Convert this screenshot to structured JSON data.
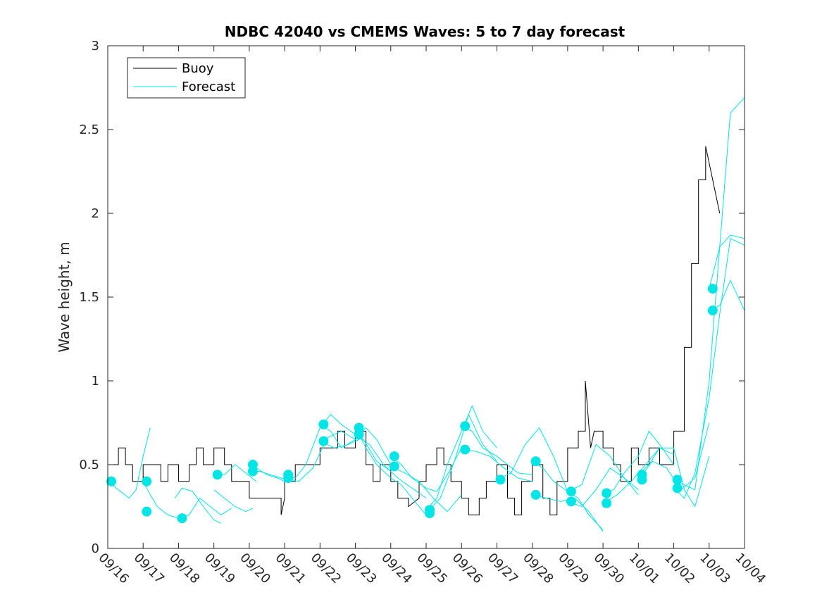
{
  "chart_data": {
    "type": "line",
    "title": "NDBC 42040 vs CMEMS Waves: 5 to 7 day forecast",
    "xlabel": "",
    "ylabel": "Wave height, m",
    "xlim": [
      0,
      18
    ],
    "ylim": [
      0,
      3
    ],
    "x_tick_labels": [
      "09/16",
      "09/17",
      "09/18",
      "09/19",
      "09/20",
      "09/21",
      "09/22",
      "09/23",
      "09/24",
      "09/25",
      "09/26",
      "09/27",
      "09/28",
      "09/29",
      "09/30",
      "10/01",
      "10/02",
      "10/03",
      "10/04"
    ],
    "y_ticks": [
      0,
      0.5,
      1,
      1.5,
      2,
      2.5,
      3
    ],
    "y_tick_labels": [
      "0",
      "0.5",
      "1",
      "1.5",
      "2",
      "2.5",
      "3"
    ],
    "grid": false,
    "legend": {
      "position": "top-left",
      "entries": [
        {
          "label": "Buoy",
          "color": "#000000"
        },
        {
          "label": "Forecast",
          "color": "#00e5e5"
        }
      ]
    },
    "colors": {
      "buoy": "#000000",
      "forecast": "#00e5e5",
      "marker": "#00e5e5"
    },
    "series": [
      {
        "name": "Buoy",
        "x": [
          0.0,
          0.3,
          0.3,
          0.5,
          0.5,
          0.7,
          0.7,
          1.0,
          1.0,
          1.5,
          1.5,
          1.7,
          1.7,
          2.0,
          2.0,
          2.3,
          2.3,
          2.5,
          2.5,
          2.7,
          2.7,
          3.0,
          3.0,
          3.3,
          3.3,
          3.5,
          3.5,
          4.0,
          4.0,
          4.5,
          4.5,
          4.9,
          4.9,
          5.0,
          5.0,
          5.3,
          5.3,
          6.0,
          6.0,
          6.5,
          6.5,
          6.7,
          6.7,
          7.0,
          7.0,
          7.3,
          7.3,
          7.5,
          7.5,
          7.7,
          7.7,
          8.0,
          8.0,
          8.2,
          8.2,
          8.5,
          8.5,
          8.8,
          8.8,
          9.0,
          9.0,
          9.3,
          9.3,
          9.5,
          9.5,
          9.7,
          9.7,
          10.0,
          10.0,
          10.2,
          10.2,
          10.5,
          10.5,
          10.7,
          10.7,
          11.0,
          11.0,
          11.3,
          11.3,
          11.5,
          11.5,
          11.7,
          11.7,
          12.0,
          12.0,
          12.3,
          12.3,
          12.5,
          12.5,
          12.7,
          12.7,
          13.0,
          13.0,
          13.3,
          13.3,
          13.5,
          13.5,
          13.65,
          13.75,
          13.85,
          13.85,
          14.0,
          14.0,
          14.3,
          14.3,
          14.5,
          14.5,
          14.8,
          14.8,
          15.0,
          15.0,
          15.3,
          15.3,
          15.6,
          15.6,
          16.0,
          16.0,
          16.3,
          16.3,
          16.5,
          16.5,
          16.7,
          16.7,
          16.9,
          16.9,
          17.1,
          17.1,
          17.3
        ],
        "y": [
          0.5,
          0.5,
          0.6,
          0.6,
          0.5,
          0.5,
          0.4,
          0.4,
          0.5,
          0.5,
          0.4,
          0.4,
          0.5,
          0.5,
          0.4,
          0.4,
          0.5,
          0.5,
          0.6,
          0.6,
          0.5,
          0.5,
          0.6,
          0.6,
          0.5,
          0.5,
          0.4,
          0.4,
          0.3,
          0.3,
          0.3,
          0.3,
          0.2,
          0.3,
          0.4,
          0.4,
          0.5,
          0.5,
          0.6,
          0.6,
          0.7,
          0.7,
          0.6,
          0.6,
          0.7,
          0.7,
          0.5,
          0.5,
          0.4,
          0.4,
          0.5,
          0.5,
          0.4,
          0.4,
          0.3,
          0.3,
          0.25,
          0.3,
          0.4,
          0.4,
          0.5,
          0.5,
          0.6,
          0.6,
          0.5,
          0.5,
          0.4,
          0.4,
          0.3,
          0.3,
          0.2,
          0.2,
          0.3,
          0.3,
          0.4,
          0.4,
          0.5,
          0.5,
          0.3,
          0.3,
          0.2,
          0.2,
          0.4,
          0.4,
          0.5,
          0.5,
          0.3,
          0.3,
          0.2,
          0.2,
          0.4,
          0.4,
          0.6,
          0.6,
          0.7,
          0.7,
          1.0,
          0.6,
          0.7,
          0.7,
          0.7,
          0.7,
          0.6,
          0.6,
          0.5,
          0.5,
          0.4,
          0.4,
          0.6,
          0.6,
          0.5,
          0.5,
          0.6,
          0.6,
          0.5,
          0.5,
          0.7,
          0.7,
          1.2,
          1.2,
          1.7,
          1.7,
          2.2,
          2.2,
          2.4,
          2.2,
          2.2,
          2.0
        ]
      },
      {
        "name": "Forecast",
        "segments": [
          {
            "x": [
              0.0,
              0.3,
              0.6,
              0.8,
              1.0,
              1.2
            ],
            "y": [
              0.4,
              0.35,
              0.3,
              0.35,
              0.55,
              0.72
            ]
          },
          {
            "x": [
              1.0,
              1.2,
              1.4,
              1.7,
              2.0
            ],
            "y": [
              0.4,
              0.32,
              0.25,
              0.2,
              0.18
            ]
          },
          {
            "x": [
              1.9,
              2.1,
              2.4,
              2.7,
              3.0,
              3.2
            ],
            "y": [
              0.3,
              0.36,
              0.34,
              0.25,
              0.17,
              0.15
            ]
          },
          {
            "x": [
              2.0,
              2.3,
              2.6,
              2.9,
              3.2,
              3.5
            ],
            "y": [
              0.18,
              0.2,
              0.3,
              0.25,
              0.2,
              0.24
            ]
          },
          {
            "x": [
              3.0,
              3.3,
              3.6,
              3.9,
              4.2
            ],
            "y": [
              0.44,
              0.44,
              0.5,
              0.45,
              0.4
            ]
          },
          {
            "x": [
              3.0,
              3.3,
              3.6,
              3.9,
              4.1
            ],
            "y": [
              0.35,
              0.3,
              0.25,
              0.22,
              0.24
            ]
          },
          {
            "x": [
              4.0,
              4.2,
              4.5,
              4.8,
              5.0
            ],
            "y": [
              0.5,
              0.48,
              0.44,
              0.42,
              0.4
            ]
          },
          {
            "x": [
              4.0,
              4.3,
              4.6,
              4.9,
              5.1
            ],
            "y": [
              0.46,
              0.46,
              0.44,
              0.42,
              0.41
            ]
          },
          {
            "x": [
              5.0,
              5.3,
              5.6,
              6.0,
              6.3,
              6.6,
              7.0
            ],
            "y": [
              0.44,
              0.42,
              0.5,
              0.72,
              0.8,
              0.74,
              0.68
            ]
          },
          {
            "x": [
              5.0,
              5.4,
              5.8,
              6.2,
              6.6,
              7.0
            ],
            "y": [
              0.42,
              0.4,
              0.48,
              0.66,
              0.7,
              0.65
            ]
          },
          {
            "x": [
              6.0,
              6.3,
              6.6,
              7.0,
              7.3,
              7.6,
              8.0
            ],
            "y": [
              0.74,
              0.7,
              0.6,
              0.65,
              0.72,
              0.65,
              0.5
            ]
          },
          {
            "x": [
              6.0,
              6.4,
              6.8,
              7.2,
              7.6,
              8.0
            ],
            "y": [
              0.64,
              0.6,
              0.62,
              0.66,
              0.52,
              0.46
            ]
          },
          {
            "x": [
              7.0,
              7.3,
              7.6,
              8.0,
              8.3,
              8.6,
              9.0
            ],
            "y": [
              0.72,
              0.6,
              0.5,
              0.42,
              0.38,
              0.3,
              0.2
            ]
          },
          {
            "x": [
              7.0,
              7.4,
              7.8,
              8.2,
              8.6,
              9.0
            ],
            "y": [
              0.68,
              0.62,
              0.5,
              0.42,
              0.36,
              0.3
            ]
          },
          {
            "x": [
              8.0,
              8.3,
              8.6,
              9.0,
              9.3,
              9.6,
              10.0
            ],
            "y": [
              0.55,
              0.5,
              0.42,
              0.36,
              0.34,
              0.44,
              0.6
            ]
          },
          {
            "x": [
              8.0,
              8.4,
              8.8,
              9.2,
              9.6,
              10.0
            ],
            "y": [
              0.49,
              0.45,
              0.4,
              0.3,
              0.22,
              0.32
            ]
          },
          {
            "x": [
              9.0,
              9.3,
              9.6,
              10.0,
              10.3,
              10.6,
              11.0
            ],
            "y": [
              0.23,
              0.3,
              0.5,
              0.7,
              0.85,
              0.7,
              0.6
            ]
          },
          {
            "x": [
              9.0,
              9.4,
              9.8,
              10.2,
              10.6,
              11.0
            ],
            "y": [
              0.21,
              0.3,
              0.52,
              0.8,
              0.62,
              0.52
            ]
          },
          {
            "x": [
              10.0,
              10.3,
              10.6,
              11.0,
              11.3,
              11.6,
              12.0
            ],
            "y": [
              0.73,
              0.7,
              0.6,
              0.55,
              0.5,
              0.45,
              0.44
            ]
          },
          {
            "x": [
              10.0,
              10.4,
              10.8,
              11.2,
              11.6,
              12.0
            ],
            "y": [
              0.59,
              0.58,
              0.55,
              0.48,
              0.42,
              0.4
            ]
          },
          {
            "x": [
              11.0,
              11.4,
              11.8,
              12.2,
              12.6,
              13.0
            ],
            "y": [
              0.41,
              0.45,
              0.62,
              0.72,
              0.55,
              0.34
            ]
          },
          {
            "x": [
              12.0,
              12.3,
              12.6,
              13.0,
              13.3,
              13.6,
              14.0
            ],
            "y": [
              0.52,
              0.48,
              0.4,
              0.34,
              0.3,
              0.2,
              0.11
            ]
          },
          {
            "x": [
              12.0,
              12.4,
              12.8,
              13.2,
              13.6,
              14.0
            ],
            "y": [
              0.32,
              0.3,
              0.28,
              0.3,
              0.22,
              0.1
            ]
          },
          {
            "x": [
              13.0,
              13.4,
              13.8,
              14.2,
              14.6,
              15.0
            ],
            "y": [
              0.34,
              0.38,
              0.62,
              0.55,
              0.42,
              0.35
            ]
          },
          {
            "x": [
              13.0,
              13.4,
              13.8,
              14.2,
              14.6,
              15.0
            ],
            "y": [
              0.28,
              0.25,
              0.35,
              0.48,
              0.42,
              0.32
            ]
          },
          {
            "x": [
              14.0,
              14.3,
              14.6,
              15.0,
              15.3,
              15.6,
              16.0
            ],
            "y": [
              0.33,
              0.35,
              0.45,
              0.55,
              0.7,
              0.62,
              0.5
            ]
          },
          {
            "x": [
              14.0,
              14.4,
              14.8,
              15.2,
              15.6,
              16.0
            ],
            "y": [
              0.27,
              0.32,
              0.4,
              0.5,
              0.6,
              0.56
            ]
          },
          {
            "x": [
              15.0,
              15.3,
              15.6,
              16.0,
              16.3,
              16.6,
              17.0
            ],
            "y": [
              0.44,
              0.5,
              0.6,
              0.6,
              0.35,
              0.25,
              0.55
            ]
          },
          {
            "x": [
              15.0,
              15.4,
              15.8,
              16.2,
              16.6,
              17.0
            ],
            "y": [
              0.41,
              0.52,
              0.48,
              0.35,
              0.42,
              0.75
            ]
          },
          {
            "x": [
              16.0,
              16.3,
              16.6,
              17.0,
              17.3,
              17.6,
              18.0
            ],
            "y": [
              0.41,
              0.38,
              0.35,
              1.0,
              1.8,
              2.6,
              2.69
            ]
          },
          {
            "x": [
              16.0,
              16.3,
              16.6,
              17.0,
              17.3,
              17.6,
              18.0
            ],
            "y": [
              0.36,
              0.3,
              0.45,
              0.9,
              1.4,
              1.85,
              1.81
            ]
          },
          {
            "x": [
              17.0,
              17.3,
              17.6,
              18.0
            ],
            "y": [
              1.55,
              1.8,
              1.87,
              1.85
            ]
          },
          {
            "x": [
              17.0,
              17.3,
              17.6,
              18.0
            ],
            "y": [
              1.42,
              1.45,
              1.6,
              1.42
            ]
          }
        ],
        "markers": {
          "x": [
            0.1,
            1.1,
            1.1,
            2.1,
            3.1,
            4.1,
            4.1,
            5.1,
            5.1,
            6.1,
            6.1,
            7.1,
            7.1,
            8.1,
            8.1,
            9.1,
            9.1,
            10.1,
            10.1,
            11.1,
            12.1,
            12.1,
            13.1,
            13.1,
            14.1,
            14.1,
            15.1,
            15.1,
            16.1,
            16.1,
            17.1,
            17.1
          ],
          "y": [
            0.4,
            0.4,
            0.22,
            0.18,
            0.44,
            0.5,
            0.46,
            0.44,
            0.42,
            0.74,
            0.64,
            0.72,
            0.68,
            0.55,
            0.49,
            0.23,
            0.21,
            0.73,
            0.59,
            0.41,
            0.52,
            0.32,
            0.34,
            0.28,
            0.33,
            0.27,
            0.44,
            0.41,
            0.41,
            0.36,
            1.55,
            1.42
          ]
        }
      }
    ]
  }
}
